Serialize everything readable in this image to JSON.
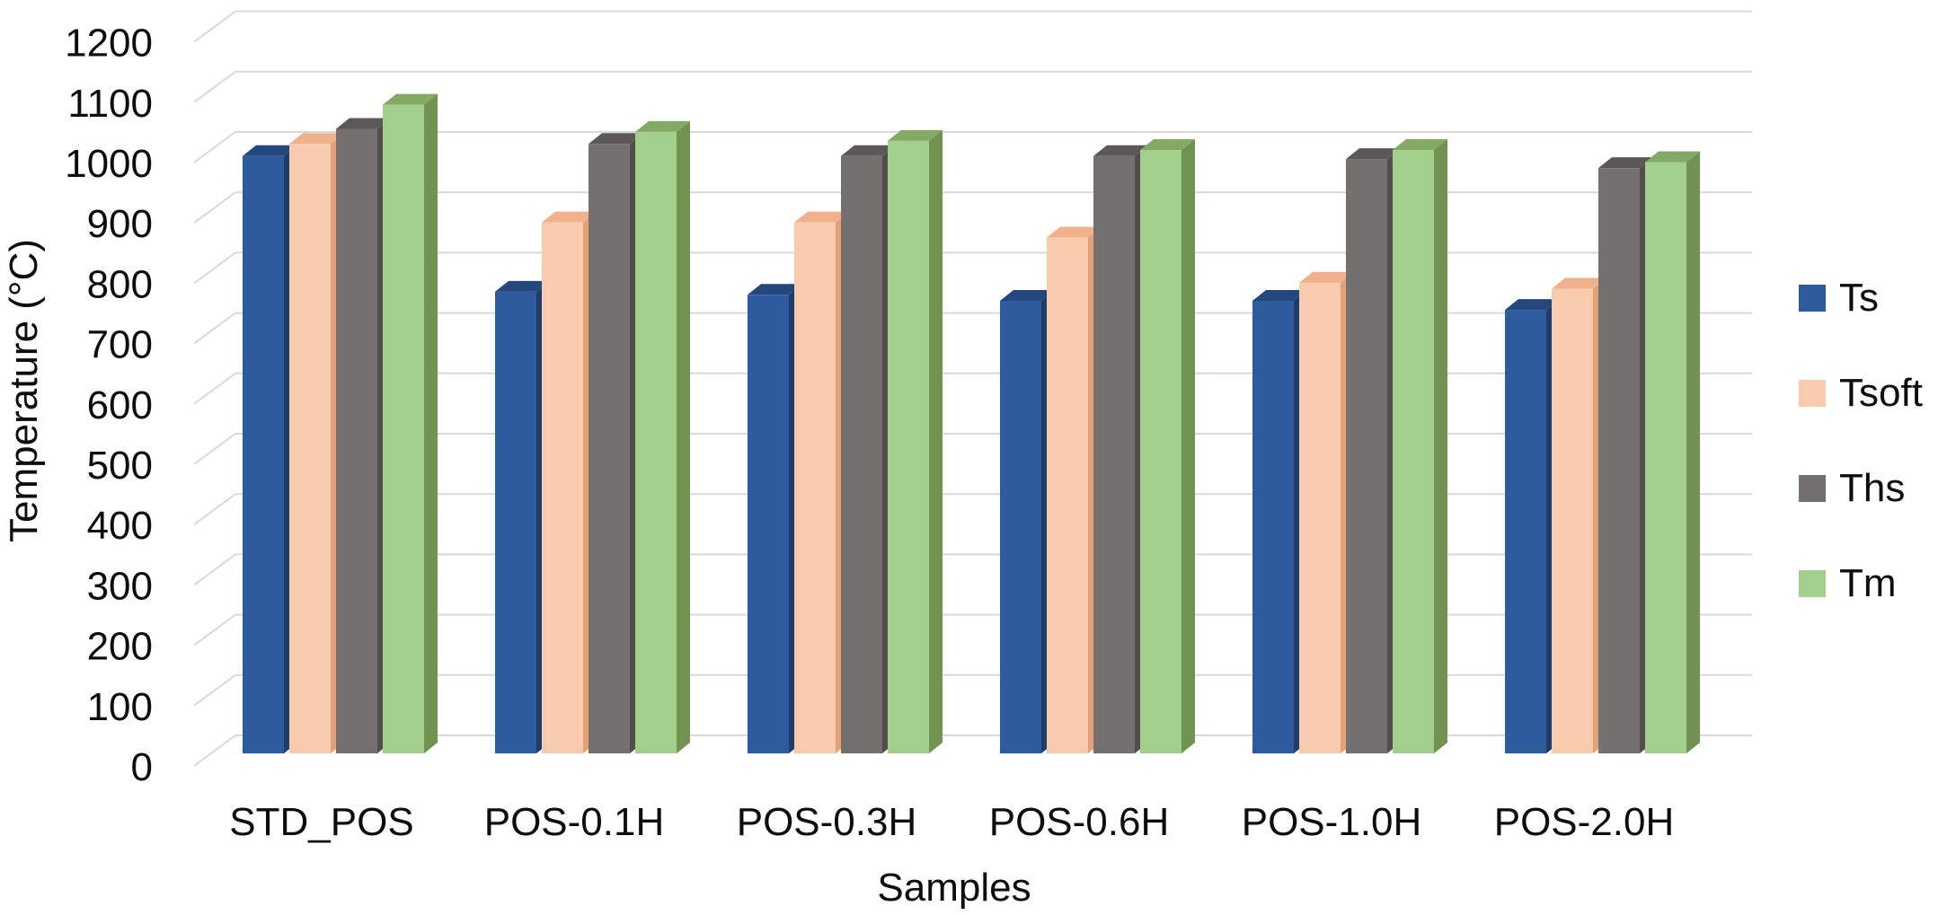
{
  "figure": {
    "background": "#FFFFFF",
    "gridline_color": "#D9D9D9",
    "text_color": "#0D0D0D"
  },
  "chart_data": {
    "type": "bar",
    "projection": "3d-column-clustered",
    "title": "",
    "xlabel": "Samples",
    "ylabel": "Temperature (°C)",
    "ylim": [
      0,
      1200
    ],
    "ytick_step": 100,
    "grid": true,
    "legend_position": "right",
    "categories": [
      "STD_POS",
      "POS-0.1H",
      "POS-0.3H",
      "POS-0.6H",
      "POS-1.0H",
      "POS-2.0H"
    ],
    "series": [
      {
        "name": "Ts",
        "color": "#2E5B9E",
        "color_top": "#24477E",
        "color_side": "#1F3C6B",
        "values": [
          990,
          765,
          760,
          750,
          750,
          735
        ]
      },
      {
        "name": "Tsoft",
        "color": "#F8CBAD",
        "color_top": "#EFB28C",
        "color_side": "#E5A176",
        "values": [
          1010,
          880,
          880,
          855,
          780,
          770
        ]
      },
      {
        "name": "Ths",
        "color": "#747070",
        "color_top": "#5C5858",
        "color_side": "#524E4E",
        "values": [
          1035,
          1010,
          990,
          990,
          985,
          970
        ]
      },
      {
        "name": "Tm",
        "color": "#A3CF8C",
        "color_top": "#84A964",
        "color_side": "#719250",
        "values": [
          1075,
          1030,
          1015,
          1000,
          1000,
          980
        ]
      }
    ]
  }
}
